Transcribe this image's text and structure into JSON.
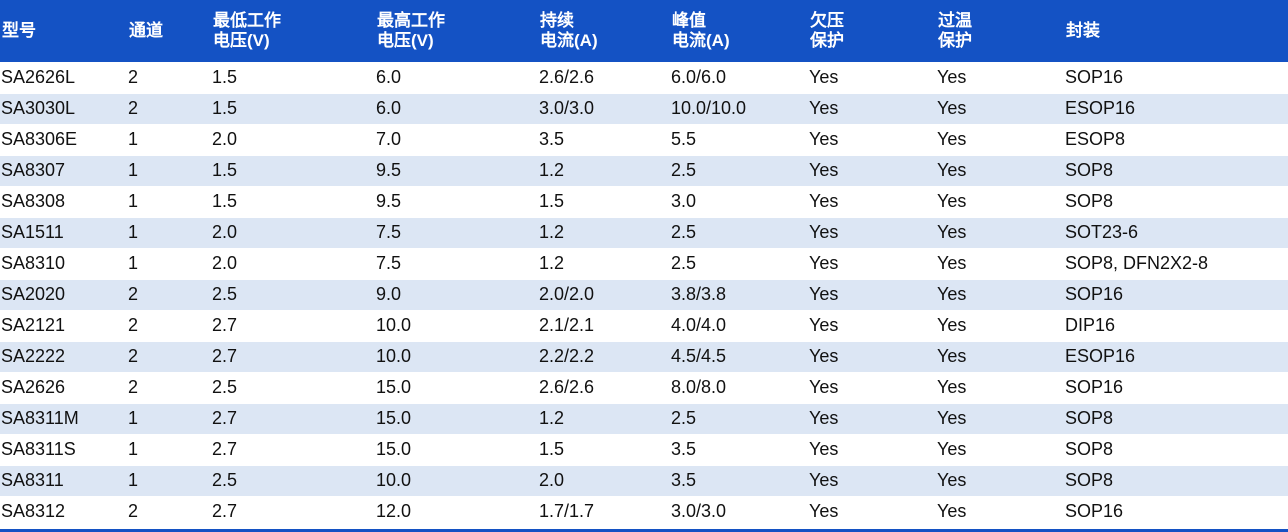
{
  "table": {
    "headers": [
      "型号",
      "通道",
      "最低工作\n电压(V)",
      "最高工作\n电压(V)",
      "持续\n电流(A)",
      "峰值\n电流(A)",
      "欠压\n保护",
      "过温\n保护",
      "封装"
    ],
    "rows": [
      [
        "SA2626L",
        "2",
        "1.5",
        "6.0",
        "2.6/2.6",
        "6.0/6.0",
        "Yes",
        "Yes",
        "SOP16"
      ],
      [
        "SA3030L",
        "2",
        "1.5",
        "6.0",
        "3.0/3.0",
        "10.0/10.0",
        "Yes",
        "Yes",
        "ESOP16"
      ],
      [
        "SA8306E",
        "1",
        "2.0",
        "7.0",
        "3.5",
        "5.5",
        "Yes",
        "Yes",
        "ESOP8"
      ],
      [
        "SA8307",
        "1",
        "1.5",
        "9.5",
        "1.2",
        "2.5",
        "Yes",
        "Yes",
        "SOP8"
      ],
      [
        "SA8308",
        "1",
        "1.5",
        "9.5",
        "1.5",
        "3.0",
        "Yes",
        "Yes",
        "SOP8"
      ],
      [
        "SA1511",
        "1",
        "2.0",
        "7.5",
        "1.2",
        "2.5",
        "Yes",
        "Yes",
        "SOT23-6"
      ],
      [
        "SA8310",
        "1",
        "2.0",
        "7.5",
        "1.2",
        "2.5",
        "Yes",
        "Yes",
        "SOP8, DFN2X2-8"
      ],
      [
        "SA2020",
        "2",
        "2.5",
        "9.0",
        "2.0/2.0",
        "3.8/3.8",
        "Yes",
        "Yes",
        "SOP16"
      ],
      [
        "SA2121",
        "2",
        "2.7",
        "10.0",
        "2.1/2.1",
        "4.0/4.0",
        "Yes",
        "Yes",
        "DIP16"
      ],
      [
        "SA2222",
        "2",
        "2.7",
        "10.0",
        "2.2/2.2",
        "4.5/4.5",
        "Yes",
        "Yes",
        "ESOP16"
      ],
      [
        "SA2626",
        "2",
        "2.5",
        "15.0",
        "2.6/2.6",
        "8.0/8.0",
        "Yes",
        "Yes",
        "SOP16"
      ],
      [
        "SA8311M",
        "1",
        "2.7",
        "15.0",
        "1.2",
        "2.5",
        "Yes",
        "Yes",
        "SOP8"
      ],
      [
        "SA8311S",
        "1",
        "2.7",
        "15.0",
        "1.5",
        "3.5",
        "Yes",
        "Yes",
        "SOP8"
      ],
      [
        "SA8311",
        "1",
        "2.5",
        "10.0",
        "2.0",
        "3.5",
        "Yes",
        "Yes",
        "SOP8"
      ],
      [
        "SA8312",
        "2",
        "2.7",
        "12.0",
        "1.7/1.7",
        "3.0/3.0",
        "Yes",
        "Yes",
        "SOP16"
      ]
    ]
  },
  "colors": {
    "header_bg": "#1452c4",
    "stripe": "#dce6f4",
    "header_text": "#ffffff"
  }
}
